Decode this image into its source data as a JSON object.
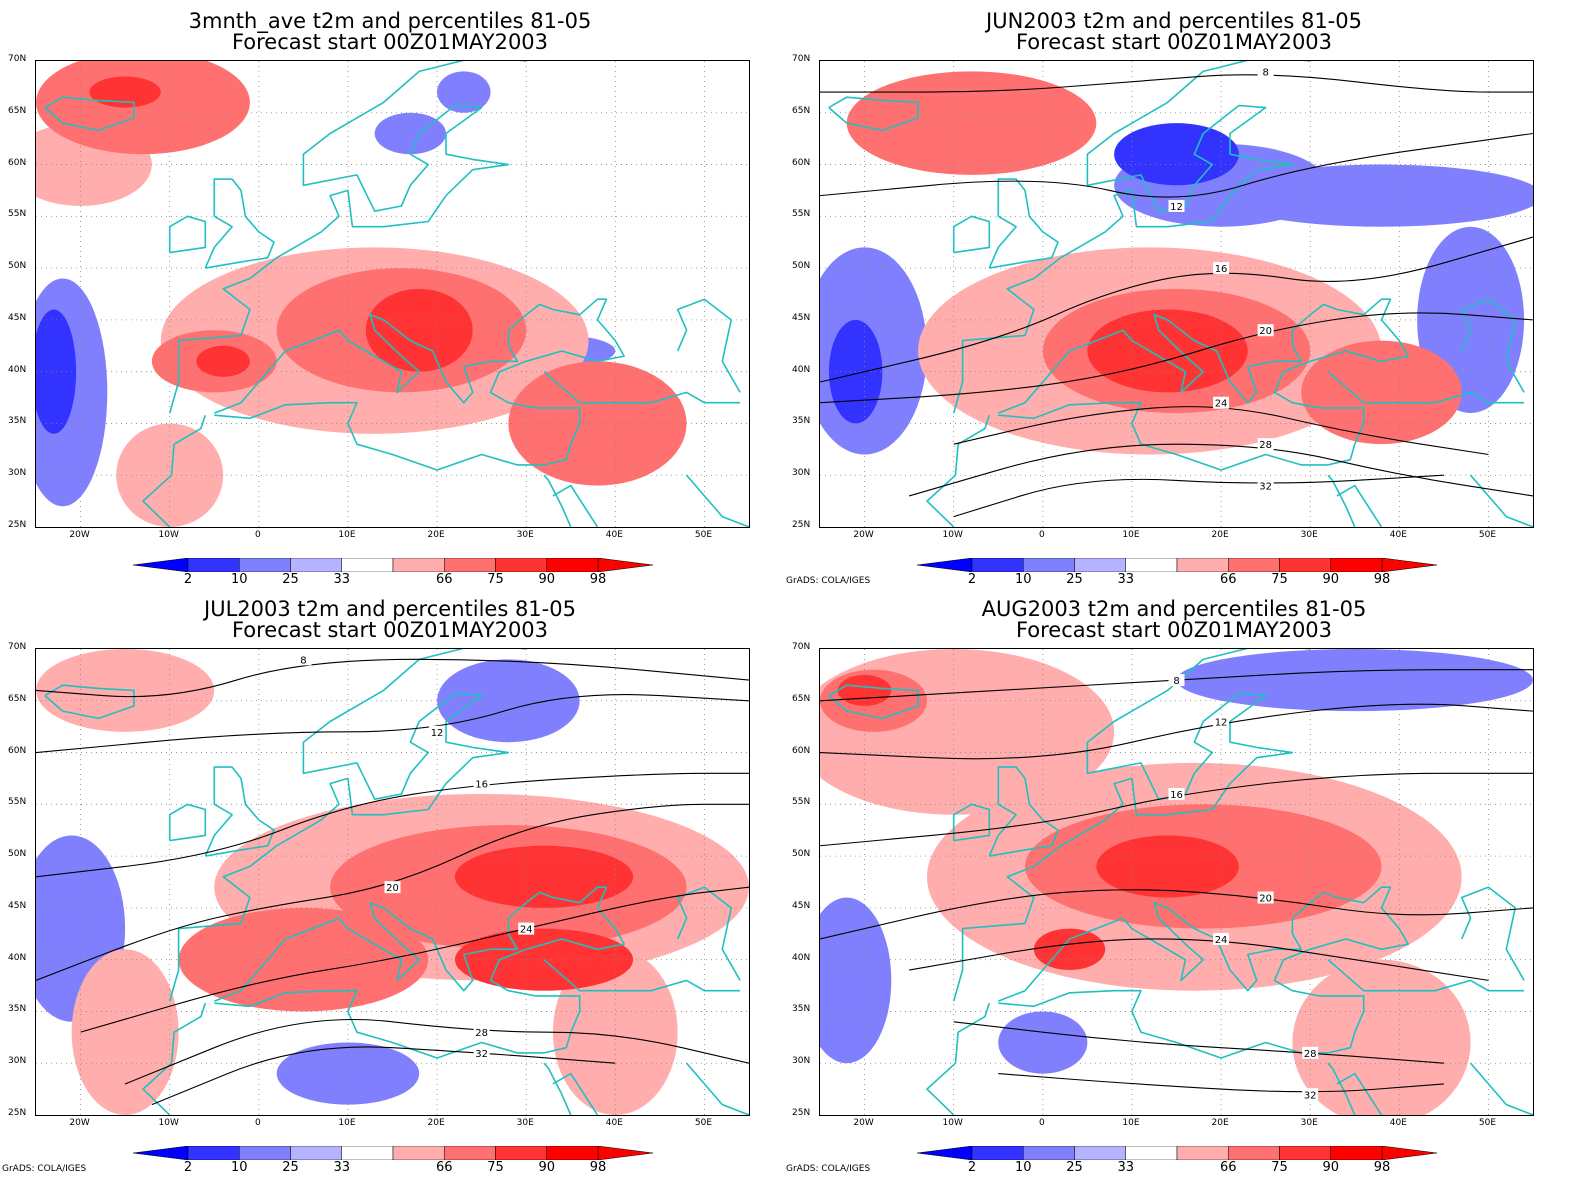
{
  "panels": [
    {
      "title1": "3mnth_ave t2m and percentiles 81-05",
      "title2": "Forecast start 00Z01MAY2003",
      "credit": "",
      "blobs": [
        {
          "lon": -13,
          "lat": 66,
          "rx": 12,
          "ry": 5,
          "level": "p75"
        },
        {
          "lon": -15,
          "lat": 67,
          "rx": 4,
          "ry": 1.5,
          "level": "p90"
        },
        {
          "lon": -20,
          "lat": 60,
          "rx": 8,
          "ry": 4,
          "level": "p66"
        },
        {
          "lon": 13,
          "lat": 43,
          "rx": 24,
          "ry": 9,
          "level": "p66"
        },
        {
          "lon": 16,
          "lat": 44,
          "rx": 14,
          "ry": 6,
          "level": "p75"
        },
        {
          "lon": -5,
          "lat": 41,
          "rx": 7,
          "ry": 3,
          "level": "p75"
        },
        {
          "lon": 18,
          "lat": 44,
          "rx": 6,
          "ry": 4,
          "level": "p90"
        },
        {
          "lon": -4,
          "lat": 41,
          "rx": 3,
          "ry": 1.5,
          "level": "p90"
        },
        {
          "lon": 38,
          "lat": 35,
          "rx": 10,
          "ry": 6,
          "level": "p75"
        },
        {
          "lon": -10,
          "lat": 30,
          "rx": 6,
          "ry": 5,
          "level": "p66"
        },
        {
          "lon": -22,
          "lat": 38,
          "rx": 5,
          "ry": 11,
          "level": "p25"
        },
        {
          "lon": -23,
          "lat": 40,
          "rx": 2.5,
          "ry": 6,
          "level": "p10"
        },
        {
          "lon": 17,
          "lat": 63,
          "rx": 4,
          "ry": 2,
          "level": "p25"
        },
        {
          "lon": 34,
          "lat": 42,
          "rx": 6,
          "ry": 1.5,
          "level": "p25"
        },
        {
          "lon": 23,
          "lat": 67,
          "rx": 3,
          "ry": 2,
          "level": "p25"
        }
      ],
      "contours": []
    },
    {
      "title1": "JUN2003 t2m and percentiles 81-05",
      "title2": "Forecast start 00Z01MAY2003",
      "credit": "GrADS: COLA/IGES",
      "blobs": [
        {
          "lon": -8,
          "lat": 64,
          "rx": 14,
          "ry": 5,
          "level": "p75"
        },
        {
          "lon": 20,
          "lat": 58,
          "rx": 12,
          "ry": 4,
          "level": "p25"
        },
        {
          "lon": 15,
          "lat": 61,
          "rx": 7,
          "ry": 3,
          "level": "p10"
        },
        {
          "lon": 38,
          "lat": 57,
          "rx": 18,
          "ry": 3,
          "level": "p25"
        },
        {
          "lon": 12,
          "lat": 42,
          "rx": 26,
          "ry": 10,
          "level": "p66"
        },
        {
          "lon": 15,
          "lat": 42,
          "rx": 15,
          "ry": 6,
          "level": "p75"
        },
        {
          "lon": 14,
          "lat": 42,
          "rx": 9,
          "ry": 4,
          "level": "p90"
        },
        {
          "lon": 38,
          "lat": 38,
          "rx": 9,
          "ry": 5,
          "level": "p75"
        },
        {
          "lon": -20,
          "lat": 42,
          "rx": 7,
          "ry": 10,
          "level": "p25"
        },
        {
          "lon": -21,
          "lat": 40,
          "rx": 3,
          "ry": 5,
          "level": "p10"
        },
        {
          "lon": 48,
          "lat": 45,
          "rx": 6,
          "ry": 9,
          "level": "p25"
        },
        {
          "lon": 32,
          "lat": 44,
          "rx": 5,
          "ry": 2,
          "level": "p25"
        }
      ],
      "contours": [
        {
          "label": "8",
          "pts": [
            [
              -25,
              67
            ],
            [
              -5,
              67
            ],
            [
              10,
              68
            ],
            [
              25,
              69
            ],
            [
              45,
              67
            ],
            [
              55,
              67
            ]
          ]
        },
        {
          "label": "12",
          "pts": [
            [
              -25,
              57
            ],
            [
              0,
              59
            ],
            [
              15,
              56
            ],
            [
              30,
              60
            ],
            [
              55,
              63
            ]
          ]
        },
        {
          "label": "16",
          "pts": [
            [
              -25,
              39
            ],
            [
              -5,
              43
            ],
            [
              8,
              48
            ],
            [
              20,
              50
            ],
            [
              35,
              48
            ],
            [
              55,
              53
            ]
          ]
        },
        {
          "label": "20",
          "pts": [
            [
              -25,
              37
            ],
            [
              -5,
              38
            ],
            [
              10,
              40
            ],
            [
              25,
              44
            ],
            [
              40,
              46
            ],
            [
              55,
              45
            ]
          ]
        },
        {
          "label": "24",
          "pts": [
            [
              -10,
              33
            ],
            [
              5,
              36
            ],
            [
              20,
              37
            ],
            [
              35,
              34
            ],
            [
              50,
              32
            ]
          ]
        },
        {
          "label": "28",
          "pts": [
            [
              -15,
              28
            ],
            [
              5,
              33
            ],
            [
              25,
              33
            ],
            [
              40,
              30
            ],
            [
              55,
              28
            ]
          ]
        },
        {
          "label": "32",
          "pts": [
            [
              -10,
              26
            ],
            [
              5,
              30
            ],
            [
              25,
              29
            ],
            [
              45,
              30
            ]
          ]
        }
      ]
    },
    {
      "title1": "JUL2003 t2m and percentiles 81-05",
      "title2": "Forecast start 00Z01MAY2003",
      "credit": "GrADS: COLA/IGES",
      "blobs": [
        {
          "lon": -15,
          "lat": 66,
          "rx": 10,
          "ry": 4,
          "level": "p66"
        },
        {
          "lon": 25,
          "lat": 47,
          "rx": 30,
          "ry": 9,
          "level": "p66"
        },
        {
          "lon": 28,
          "lat": 47,
          "rx": 20,
          "ry": 6,
          "level": "p75"
        },
        {
          "lon": 32,
          "lat": 48,
          "rx": 10,
          "ry": 3,
          "level": "p90"
        },
        {
          "lon": 5,
          "lat": 40,
          "rx": 14,
          "ry": 5,
          "level": "p75"
        },
        {
          "lon": 32,
          "lat": 40,
          "rx": 10,
          "ry": 3,
          "level": "p90"
        },
        {
          "lon": -15,
          "lat": 33,
          "rx": 6,
          "ry": 8,
          "level": "p66"
        },
        {
          "lon": 40,
          "lat": 33,
          "rx": 7,
          "ry": 8,
          "level": "p66"
        },
        {
          "lon": -21,
          "lat": 43,
          "rx": 6,
          "ry": 9,
          "level": "p25"
        },
        {
          "lon": 28,
          "lat": 65,
          "rx": 8,
          "ry": 4,
          "level": "p25"
        },
        {
          "lon": 10,
          "lat": 29,
          "rx": 8,
          "ry": 3,
          "level": "p25"
        }
      ],
      "contours": [
        {
          "label": "8",
          "pts": [
            [
              -25,
              66
            ],
            [
              -10,
              65
            ],
            [
              5,
              69
            ],
            [
              30,
              69
            ],
            [
              55,
              67
            ]
          ]
        },
        {
          "label": "12",
          "pts": [
            [
              -25,
              60
            ],
            [
              0,
              62
            ],
            [
              20,
              62
            ],
            [
              35,
              66
            ],
            [
              55,
              65
            ]
          ]
        },
        {
          "label": "16",
          "pts": [
            [
              -25,
              48
            ],
            [
              -5,
              50
            ],
            [
              10,
              55
            ],
            [
              25,
              57
            ],
            [
              45,
              58
            ],
            [
              55,
              58
            ]
          ]
        },
        {
          "label": "20",
          "pts": [
            [
              -25,
              38
            ],
            [
              -10,
              43
            ],
            [
              0,
              45
            ],
            [
              15,
              47
            ],
            [
              30,
              53
            ],
            [
              45,
              55
            ],
            [
              55,
              55
            ]
          ]
        },
        {
          "label": "24",
          "pts": [
            [
              -20,
              33
            ],
            [
              0,
              38
            ],
            [
              15,
              40
            ],
            [
              30,
              43
            ],
            [
              45,
              46
            ],
            [
              55,
              47
            ]
          ]
        },
        {
          "label": "28",
          "pts": [
            [
              -15,
              28
            ],
            [
              5,
              35
            ],
            [
              25,
              33
            ],
            [
              40,
              33
            ],
            [
              55,
              30
            ]
          ]
        },
        {
          "label": "32",
          "pts": [
            [
              -12,
              26
            ],
            [
              5,
              32
            ],
            [
              25,
              31
            ],
            [
              40,
              30
            ]
          ]
        }
      ]
    },
    {
      "title1": "AUG2003 t2m and percentiles 81-05",
      "title2": "Forecast start 00Z01MAY2003",
      "credit": "GrADS: COLA/IGES",
      "blobs": [
        {
          "lon": -10,
          "lat": 62,
          "rx": 18,
          "ry": 8,
          "level": "p66"
        },
        {
          "lon": -19,
          "lat": 65,
          "rx": 6,
          "ry": 3,
          "level": "p75"
        },
        {
          "lon": -20,
          "lat": 66,
          "rx": 3,
          "ry": 1.5,
          "level": "p90"
        },
        {
          "lon": 17,
          "lat": 48,
          "rx": 30,
          "ry": 11,
          "level": "p66"
        },
        {
          "lon": 18,
          "lat": 49,
          "rx": 20,
          "ry": 6,
          "level": "p75"
        },
        {
          "lon": 14,
          "lat": 49,
          "rx": 8,
          "ry": 3,
          "level": "p90"
        },
        {
          "lon": 3,
          "lat": 41,
          "rx": 4,
          "ry": 2,
          "level": "p90"
        },
        {
          "lon": 38,
          "lat": 32,
          "rx": 10,
          "ry": 8,
          "level": "p66"
        },
        {
          "lon": 35,
          "lat": 67,
          "rx": 20,
          "ry": 3,
          "level": "p25"
        },
        {
          "lon": -22,
          "lat": 38,
          "rx": 5,
          "ry": 8,
          "level": "p25"
        },
        {
          "lon": 0,
          "lat": 32,
          "rx": 5,
          "ry": 3,
          "level": "p25"
        }
      ],
      "contours": [
        {
          "label": "8",
          "pts": [
            [
              -25,
              65
            ],
            [
              -5,
              66
            ],
            [
              15,
              67
            ],
            [
              35,
              68
            ],
            [
              55,
              68
            ]
          ]
        },
        {
          "label": "12",
          "pts": [
            [
              -25,
              60
            ],
            [
              0,
              59
            ],
            [
              20,
              63
            ],
            [
              40,
              65
            ],
            [
              55,
              64
            ]
          ]
        },
        {
          "label": "16",
          "pts": [
            [
              -25,
              51
            ],
            [
              0,
              53
            ],
            [
              15,
              56
            ],
            [
              35,
              58
            ],
            [
              55,
              58
            ]
          ]
        },
        {
          "label": "20",
          "pts": [
            [
              -25,
              42
            ],
            [
              -5,
              46
            ],
            [
              10,
              47
            ],
            [
              25,
              46
            ],
            [
              40,
              44
            ],
            [
              55,
              45
            ]
          ]
        },
        {
          "label": "24",
          "pts": [
            [
              -15,
              39
            ],
            [
              5,
              42
            ],
            [
              20,
              42
            ],
            [
              35,
              40
            ],
            [
              50,
              38
            ]
          ]
        },
        {
          "label": "28",
          "pts": [
            [
              -10,
              34
            ],
            [
              10,
              32
            ],
            [
              30,
              31
            ],
            [
              45,
              30
            ]
          ]
        },
        {
          "label": "32",
          "pts": [
            [
              -5,
              29
            ],
            [
              10,
              28
            ],
            [
              30,
              27
            ],
            [
              45,
              28
            ]
          ]
        }
      ]
    }
  ],
  "axes": {
    "lon_min": -25,
    "lon_max": 55,
    "lat_min": 25,
    "lat_max": 70,
    "lat_labels": [
      "70N",
      "65N",
      "60N",
      "55N",
      "50N",
      "45N",
      "40N",
      "35N",
      "30N",
      "25N"
    ],
    "lon_labels": [
      {
        "lon": -20,
        "label": "20W"
      },
      {
        "lon": -10,
        "label": "10W"
      },
      {
        "lon": 0,
        "label": "0"
      },
      {
        "lon": 10,
        "label": "10E"
      },
      {
        "lon": 20,
        "label": "20E"
      },
      {
        "lon": 30,
        "label": "30E"
      },
      {
        "lon": 40,
        "label": "40E"
      },
      {
        "lon": 50,
        "label": "50E"
      }
    ]
  },
  "colorbar": {
    "labels": [
      "2",
      "10",
      "25",
      "33",
      "66",
      "75",
      "90",
      "98"
    ],
    "colors": {
      "p2": "#0000ff",
      "p10": "#3333ff",
      "p25": "#8080ff",
      "p33": "#b3b3ff",
      "p66": "#ffadad",
      "p75": "#ff7070",
      "p90": "#ff3333",
      "p98": "#ff0000"
    }
  },
  "style": {
    "coast_color": "#20c0c0",
    "contour_color": "#000000"
  }
}
